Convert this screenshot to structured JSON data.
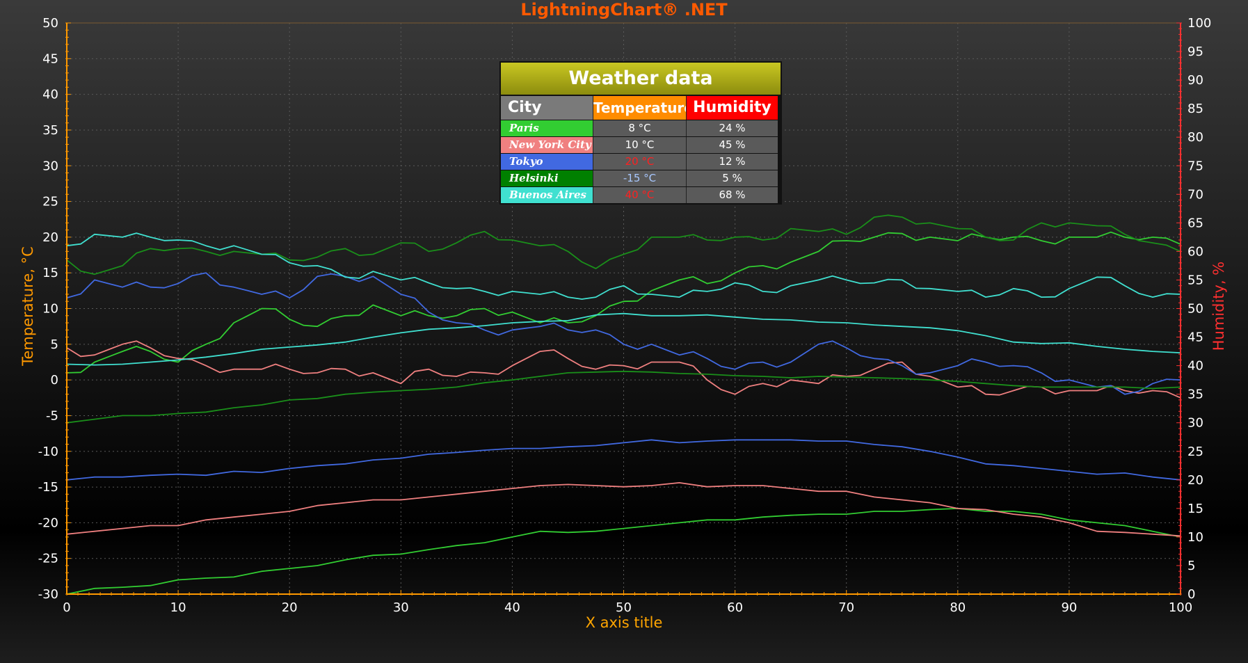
{
  "header": {
    "title": "LightningChart® .NET"
  },
  "colors": {
    "title": "#ff5a00",
    "left_axis": "#ff9900",
    "right_axis": "#ff3030",
    "xlabel": "#ffa500",
    "grid": "#5a5a5a",
    "hot_value": "#ff2020",
    "cold_value": "#a8c8ff"
  },
  "chart_data": {
    "type": "line",
    "title": "LightningChart® .NET",
    "xlabel": "X axis title",
    "ylabel": "Temperature, °C",
    "y2label": "Humidity, %",
    "xlim": [
      0,
      100
    ],
    "ylim": [
      -30,
      50
    ],
    "y2lim": [
      0,
      100
    ],
    "x_ticks": [
      0,
      10,
      20,
      30,
      40,
      50,
      60,
      70,
      80,
      90,
      100
    ],
    "y_ticks": [
      -30,
      -25,
      -20,
      -15,
      -10,
      -5,
      0,
      5,
      10,
      15,
      20,
      25,
      30,
      35,
      40,
      45,
      50
    ],
    "y2_ticks": [
      0,
      5,
      10,
      15,
      20,
      25,
      30,
      35,
      40,
      45,
      50,
      55,
      60,
      65,
      70,
      75,
      80,
      85,
      90,
      95,
      100
    ],
    "grid": true,
    "series_note_x_step": 5,
    "series": [
      {
        "name": "Paris",
        "axis": "temperature",
        "style": "jagged",
        "color": "#32cd32",
        "values": [
          1,
          2.5,
          4,
          4,
          2.5,
          5,
          8,
          10,
          8.5,
          7.5,
          9,
          10.5,
          9,
          9,
          9,
          10,
          9.5,
          8,
          8,
          9,
          11,
          12.5,
          14,
          13.5,
          15,
          16,
          16.5,
          18,
          19.5,
          20,
          20.5,
          20,
          19.5,
          20,
          20,
          19.5,
          20,
          20,
          20,
          20,
          19
        ]
      },
      {
        "name": "New York City",
        "axis": "temperature",
        "style": "jagged",
        "color": "#f08080",
        "values": [
          4.5,
          3.5,
          5,
          4.5,
          3,
          2,
          1.5,
          1.5,
          1.5,
          1,
          1.5,
          1,
          -0.5,
          1.5,
          0.5,
          1,
          2,
          4,
          3,
          1.5,
          2,
          2.5,
          2.5,
          0,
          -2,
          -0.5,
          0,
          -0.5,
          0.5,
          1.5,
          2.5,
          0.5,
          -1,
          -2,
          -1.5,
          -1,
          -1.5,
          -1.5,
          -1.5,
          -1.5,
          -2.5
        ]
      },
      {
        "name": "Tokyo",
        "axis": "temperature",
        "style": "jagged",
        "color": "#4169e1",
        "values": [
          11.5,
          14,
          13,
          13,
          13.5,
          15,
          13,
          12,
          11.5,
          14.5,
          14.5,
          14.5,
          12,
          9.5,
          8,
          7,
          7,
          7.5,
          7,
          7,
          5,
          5,
          3.5,
          3,
          1.5,
          2.5,
          2.5,
          5,
          4.5,
          3,
          2,
          1,
          2,
          2.5,
          2,
          1,
          0,
          -1,
          -2,
          -0.5,
          0
        ]
      },
      {
        "name": "Helsinki",
        "axis": "temperature",
        "style": "smooth",
        "color": "#1a8f1a",
        "values": [
          -6,
          -5.5,
          -5,
          -5,
          -4.7,
          -4.5,
          -3.9,
          -3.5,
          -2.8,
          -2.6,
          -2,
          -1.7,
          -1.5,
          -1.3,
          -1,
          -0.4,
          0,
          0.5,
          1,
          1.1,
          1.2,
          1.1,
          0.9,
          0.8,
          0.6,
          0.5,
          0.3,
          0.5,
          0.4,
          0.3,
          0.2,
          0,
          -0.2,
          -0.5,
          -0.8,
          -1,
          -1,
          -1,
          -1,
          -1.2,
          -1
        ]
      },
      {
        "name": "Buenos Aires",
        "axis": "temperature",
        "style": "smooth",
        "color": "#40e0d0",
        "values": [
          2.2,
          2.1,
          2.2,
          2.5,
          2.8,
          3.2,
          3.7,
          4.3,
          4.6,
          4.9,
          5.3,
          6,
          6.6,
          7.1,
          7.3,
          7.6,
          8,
          8.2,
          8.3,
          9.1,
          9.3,
          9,
          9,
          9.1,
          8.8,
          8.5,
          8.4,
          8.1,
          8,
          7.7,
          7.5,
          7.3,
          6.9,
          6.2,
          5.3,
          5.1,
          5.2,
          4.7,
          4.3,
          4,
          3.8
        ]
      },
      {
        "name": "Paris",
        "axis": "humidity",
        "style": "smooth",
        "color": "#32cd32",
        "values": [
          0,
          1,
          1.2,
          1.5,
          2.5,
          2.8,
          3,
          4,
          4.5,
          5,
          6,
          6.8,
          7,
          7.8,
          8.5,
          9,
          10,
          11,
          10.8,
          11,
          11.5,
          12,
          12.5,
          13,
          13,
          13.5,
          13.8,
          14,
          14,
          14.5,
          14.5,
          14.8,
          15,
          14.5,
          14.5,
          14,
          13,
          12.5,
          12,
          11,
          10
        ]
      },
      {
        "name": "New York City",
        "axis": "humidity",
        "style": "smooth",
        "color": "#f08080",
        "values": [
          10.5,
          11,
          11.5,
          12,
          12,
          13,
          13.5,
          14,
          14.5,
          15.5,
          16,
          16.5,
          16.5,
          17,
          17.5,
          18,
          18.5,
          19,
          19.2,
          19,
          18.8,
          19,
          19.5,
          18.8,
          19,
          19,
          18.5,
          18,
          18,
          17,
          16.5,
          16,
          15,
          14.8,
          14,
          13.5,
          12.5,
          11,
          10.8,
          10.5,
          10.2
        ]
      },
      {
        "name": "Tokyo",
        "axis": "humidity",
        "style": "smooth",
        "color": "#4169e1",
        "values": [
          20,
          20.5,
          20.5,
          20.8,
          21,
          20.8,
          21.5,
          21.3,
          22,
          22.5,
          22.8,
          23.5,
          23.8,
          24.5,
          24.8,
          25.2,
          25.5,
          25.5,
          25.8,
          26,
          26.5,
          27,
          26.5,
          26.8,
          27,
          27,
          27,
          26.8,
          26.8,
          26.2,
          25.8,
          25,
          24,
          22.8,
          22.5,
          22,
          21.5,
          21,
          21.2,
          20.5,
          20
        ]
      },
      {
        "name": "Helsinki",
        "axis": "humidity",
        "style": "jagged",
        "color": "#1a8f1a",
        "values": [
          58.5,
          56,
          57.5,
          60.5,
          60.5,
          60,
          60,
          59.5,
          58.5,
          59,
          60.5,
          59.5,
          61.5,
          60,
          61.5,
          63.5,
          62,
          61,
          60,
          57,
          59.5,
          62.5,
          62.5,
          62,
          62.5,
          62,
          64,
          63.5,
          63,
          66,
          66,
          65,
          64,
          62.5,
          62,
          65,
          65,
          64.5,
          63,
          61.5,
          60
        ]
      },
      {
        "name": "Buenos Aires",
        "axis": "humidity",
        "style": "jagged",
        "color": "#40e0d0",
        "values": [
          61,
          63,
          62.5,
          62.5,
          62,
          61,
          61,
          59.5,
          58,
          57.5,
          55.5,
          56.5,
          55,
          54.5,
          53.5,
          53,
          53,
          52.5,
          52,
          52,
          54,
          52.5,
          52,
          53,
          54.5,
          53,
          54,
          55,
          55,
          54.5,
          55,
          53.5,
          53,
          52,
          53.5,
          52,
          53.5,
          55.5,
          54,
          52,
          52.5
        ]
      }
    ],
    "table": {
      "title": "Weather data",
      "headers": [
        "City",
        "Temperature",
        "Humidity"
      ],
      "rows": [
        {
          "city": "Paris",
          "temperature": "8 °C",
          "humidity": "24 %",
          "city_color": "#32cd32",
          "temp_color": "#ffffff"
        },
        {
          "city": "New York City",
          "temperature": "10 °C",
          "humidity": "45 %",
          "city_color": "#f08080",
          "temp_color": "#ffffff"
        },
        {
          "city": "Tokyo",
          "temperature": "20 °C",
          "humidity": "12 %",
          "city_color": "#4169e1",
          "temp_color": "#ff2020"
        },
        {
          "city": "Helsinki",
          "temperature": "-15 °C",
          "humidity": "5 %",
          "city_color": "#008000",
          "temp_color": "#a8c8ff"
        },
        {
          "city": "Buenos Aires",
          "temperature": "40 °C",
          "humidity": "68 %",
          "city_color": "#40e0d0",
          "temp_color": "#ff2020"
        }
      ]
    }
  }
}
